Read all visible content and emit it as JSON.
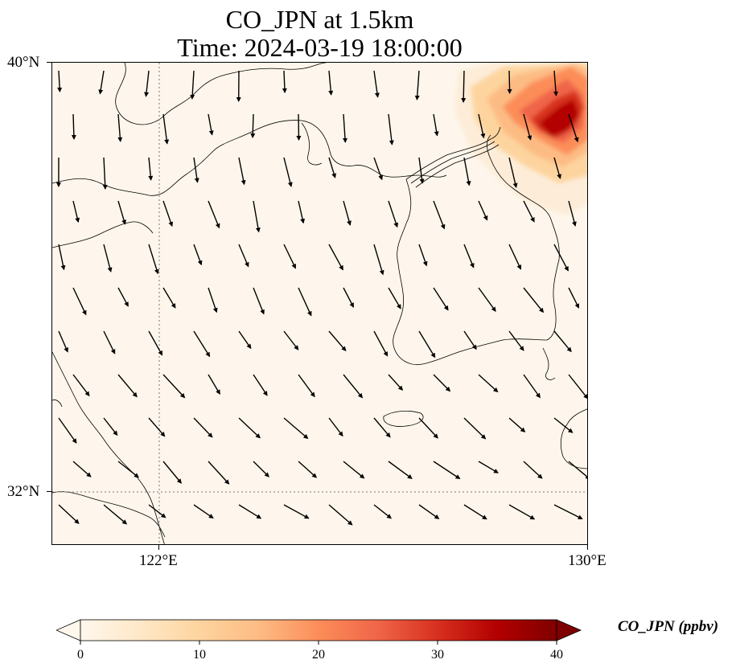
{
  "title": {
    "line1": "CO_JPN at 1.5km",
    "line2": "Time: 2024-03-19 18:00:00"
  },
  "map": {
    "lat_ticks": [
      "40°N",
      "32°N"
    ],
    "lon_ticks": [
      "122°E",
      "130°E"
    ],
    "lon_range": [
      120,
      130
    ],
    "lat_range": [
      31,
      40
    ],
    "gridlines": "dotted",
    "background_color": "#fef6ec"
  },
  "colorbar": {
    "title": "CO_JPN (ppbv)",
    "colormap": "OrRd",
    "range": [
      0,
      40
    ],
    "extend": "both",
    "tick_labels": [
      "0",
      "10",
      "20",
      "30",
      "40"
    ],
    "colors": [
      "#fff7ec",
      "#fee8c8",
      "#fdd49e",
      "#fdbb84",
      "#fc8d59",
      "#ef6548",
      "#d7301f",
      "#b30000",
      "#7f0000"
    ]
  },
  "chart_data": {
    "type": "heatmap",
    "variable": "CO_JPN (ppbv)",
    "max_region": {
      "lon_range": [
        128,
        130
      ],
      "lat_range": [
        37,
        40
      ],
      "peak_value": 35
    },
    "wind_vectors": "shown"
  }
}
